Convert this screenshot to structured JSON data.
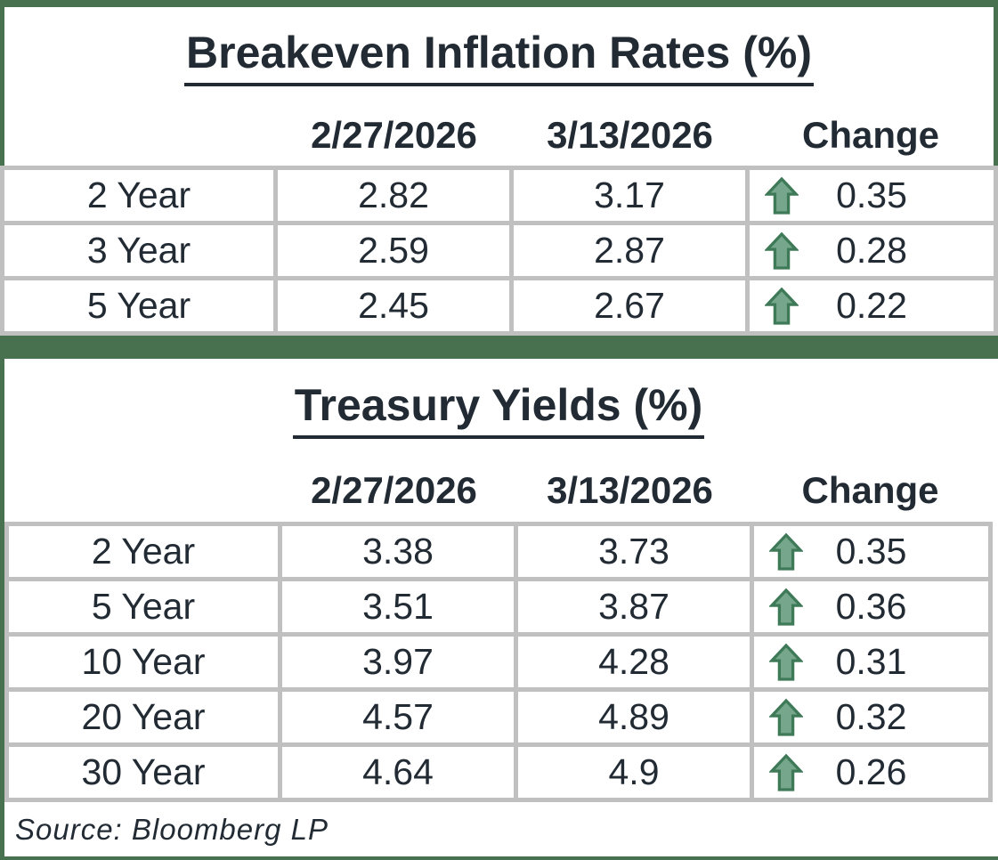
{
  "colors": {
    "accent_green": "#487150",
    "grid_gray": "#C0C0C0",
    "text": "#222B34",
    "arrow_fill": "#76A68B",
    "arrow_stroke": "#3E7A58"
  },
  "icons": {
    "change_up": "up-arrow-icon"
  },
  "source": "Source: Bloomberg LP",
  "chart_data": [
    {
      "type": "table",
      "title": "Breakeven Inflation Rates (%)",
      "columns": [
        "",
        "2/27/2026",
        "3/13/2026",
        "Change"
      ],
      "rows": [
        {
          "label": "2 Year",
          "values": [
            "2.82",
            "3.17"
          ],
          "change": "0.35",
          "direction": "up"
        },
        {
          "label": "3 Year",
          "values": [
            "2.59",
            "2.87"
          ],
          "change": "0.28",
          "direction": "up"
        },
        {
          "label": "5 Year",
          "values": [
            "2.45",
            "2.67"
          ],
          "change": "0.22",
          "direction": "up"
        }
      ]
    },
    {
      "type": "table",
      "title": "Treasury Yields (%)",
      "columns": [
        "",
        "2/27/2026",
        "3/13/2026",
        "Change"
      ],
      "rows": [
        {
          "label": "2 Year",
          "values": [
            "3.38",
            "3.73"
          ],
          "change": "0.35",
          "direction": "up"
        },
        {
          "label": "5 Year",
          "values": [
            "3.51",
            "3.87"
          ],
          "change": "0.36",
          "direction": "up"
        },
        {
          "label": "10 Year",
          "values": [
            "3.97",
            "4.28"
          ],
          "change": "0.31",
          "direction": "up"
        },
        {
          "label": "20 Year",
          "values": [
            "4.57",
            "4.89"
          ],
          "change": "0.32",
          "direction": "up"
        },
        {
          "label": "30 Year",
          "values": [
            "4.64",
            "4.9"
          ],
          "change": "0.26",
          "direction": "up"
        }
      ]
    }
  ]
}
